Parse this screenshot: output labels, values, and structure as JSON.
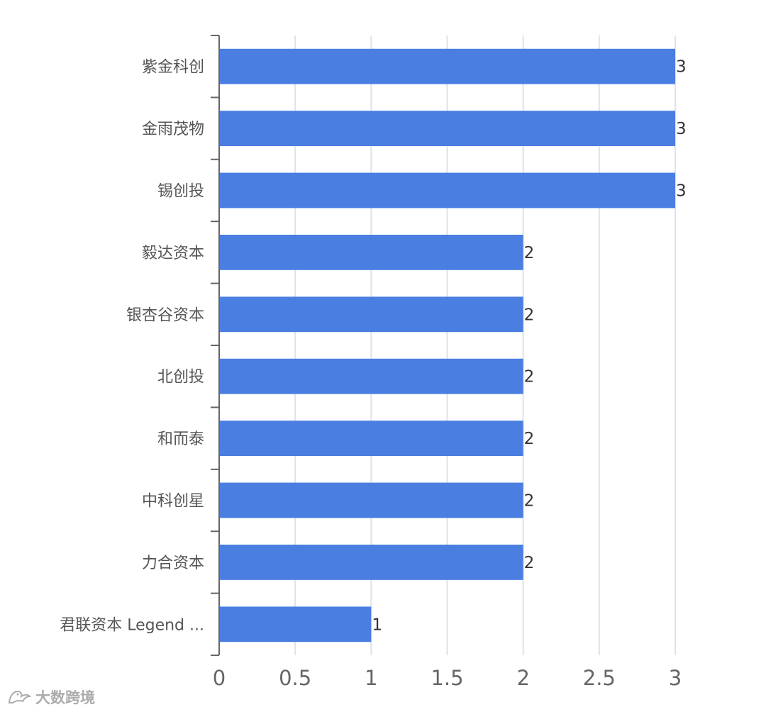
{
  "chart_data": {
    "type": "bar",
    "orientation": "horizontal",
    "categories": [
      "紫金科创",
      "金雨茂物",
      "锡创投",
      "毅达资本",
      "银杏谷资本",
      "北创投",
      "和而泰",
      "中科创星",
      "力合资本",
      "君联资本 Legend ..."
    ],
    "values": [
      3,
      3,
      3,
      2,
      2,
      2,
      2,
      2,
      2,
      1
    ],
    "data_labels": [
      "3",
      "3",
      "3",
      "2",
      "2",
      "2",
      "2",
      "2",
      "2",
      "1"
    ],
    "xlim": [
      0,
      3
    ],
    "xticks": [
      0,
      0.5,
      1,
      1.5,
      2,
      2.5,
      3
    ],
    "xtick_labels": [
      "0",
      "0.5",
      "1",
      "1.5",
      "2",
      "2.5",
      "3"
    ],
    "grid": "vertical",
    "legend": "none",
    "bar_color": "#4a7ee0",
    "grid_color": "#dde3ea",
    "axis_color": "#666666"
  },
  "watermark": {
    "text": "大数跨境",
    "icon": "bird-logo-icon"
  }
}
